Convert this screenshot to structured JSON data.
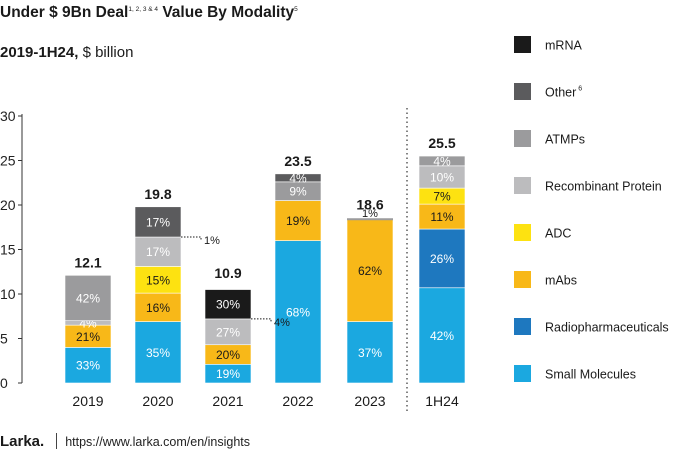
{
  "chart_data": {
    "type": "bar",
    "stacked": true,
    "title": "Under $ 9Bn Deal",
    "title_sup": "1, 2, 3 & 4",
    "title_suffix": "Value By Modality",
    "title_suffix_sup": "5",
    "subtitle_bold": "2019-1H24,",
    "subtitle_rest": "$ billion",
    "ylim": [
      0,
      30
    ],
    "yticks": [
      "0",
      "5",
      "10",
      "15",
      "20",
      "25",
      "30"
    ],
    "categories": [
      "2019",
      "2020",
      "2021",
      "2022",
      "2023",
      "1H24"
    ],
    "totals": [
      "12.1",
      "19.8",
      "10.9",
      "23.5",
      "18.6",
      "25.5"
    ],
    "total_values": [
      12.1,
      19.8,
      10.9,
      23.5,
      18.6,
      25.5
    ],
    "legend_position": "right",
    "series": [
      {
        "name": "Small Molecules",
        "color": "#1ba8e0",
        "labels": [
          "33%",
          "35%",
          "19%",
          "68%",
          "37%",
          "42%"
        ],
        "values": [
          4.0,
          6.9,
          2.1,
          16.0,
          6.9,
          10.7
        ]
      },
      {
        "name": "Radiopharmaceuticals",
        "color": "#1e78bf",
        "labels": [
          "",
          "",
          "",
          "",
          "",
          "26%"
        ],
        "values": [
          0,
          0,
          0,
          0,
          0,
          6.6
        ]
      },
      {
        "name": "mAbs",
        "color": "#f8b818",
        "labels": [
          "21%",
          "16%",
          "20%",
          "19%",
          "62%",
          "11%"
        ],
        "values": [
          2.5,
          3.2,
          2.2,
          4.5,
          11.5,
          2.8
        ]
      },
      {
        "name": "ADC",
        "color": "#fde211",
        "labels": [
          "",
          "15%",
          "",
          "",
          "",
          "7%"
        ],
        "values": [
          0,
          3.0,
          0,
          0,
          0,
          1.8
        ]
      },
      {
        "name": "Recombinant Protein",
        "color": "#bcbcbe",
        "labels": [
          "4%",
          "17%",
          "27%",
          "",
          "",
          "10%"
        ],
        "values": [
          0.5,
          3.3,
          2.9,
          0,
          0,
          2.5
        ]
      },
      {
        "name": "ATMPs",
        "color": "#9b9b9d",
        "labels": [
          "42%",
          "",
          "",
          "9%",
          "",
          "4%"
        ],
        "values": [
          5.1,
          0,
          0,
          2.1,
          0,
          1.1
        ]
      },
      {
        "name": "Other",
        "legend_sup": "6",
        "color": "#5b5b5d",
        "labels": [
          "",
          "17%",
          "",
          "4%",
          "",
          ""
        ],
        "values": [
          0,
          3.4,
          0,
          0.9,
          0,
          0
        ]
      },
      {
        "name": "mRNA",
        "color": "#1a1a1a",
        "labels": [
          "",
          "",
          "30%",
          "",
          "",
          ""
        ],
        "values": [
          0,
          0,
          3.3,
          0,
          0,
          0
        ]
      }
    ],
    "callouts": [
      {
        "category": "2020",
        "text": "1%"
      },
      {
        "category": "2021",
        "text": "4%"
      },
      {
        "category": "2023",
        "text": "1%"
      }
    ]
  },
  "footer": {
    "brand": "Larka.",
    "url": "https://www.larka.com/en/insights"
  }
}
